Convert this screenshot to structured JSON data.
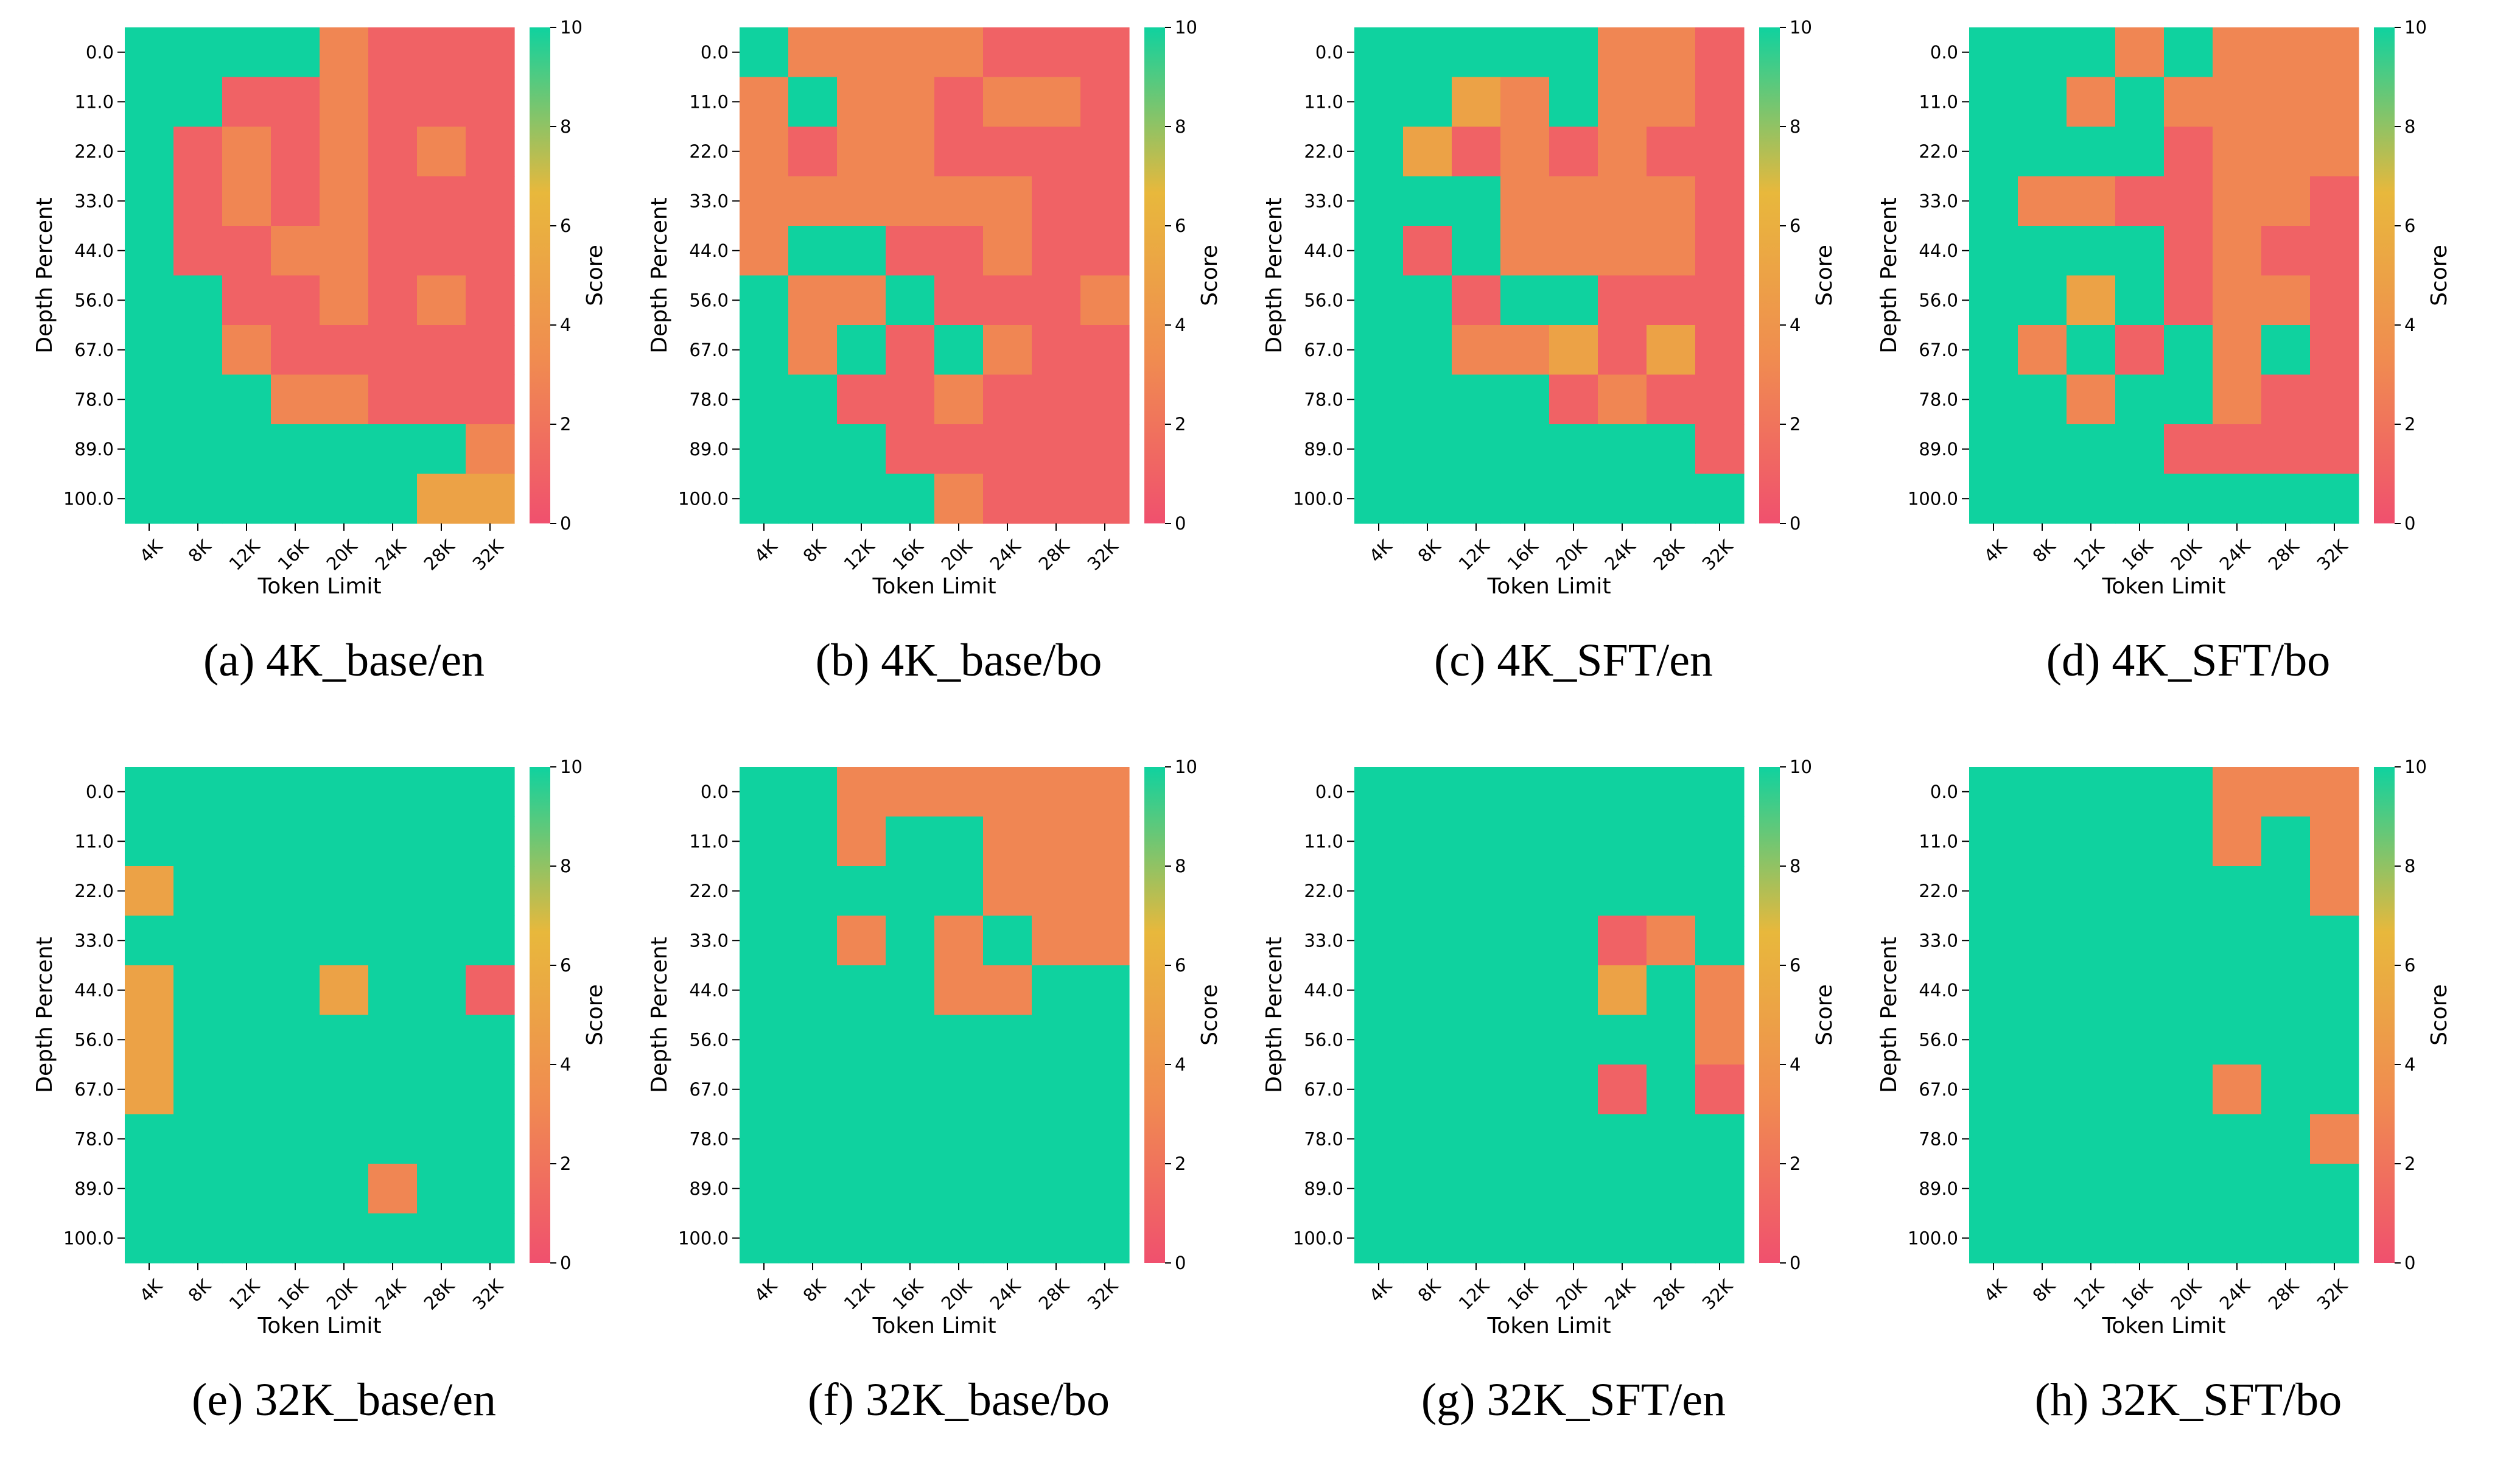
{
  "chart_data": [
    {
      "type": "heatmap",
      "caption": "(a) 4K_base/en",
      "xlabel": "Token Limit",
      "ylabel": "Depth Percent",
      "x": [
        "4K",
        "8K",
        "12K",
        "16K",
        "20K",
        "24K",
        "28K",
        "32K"
      ],
      "y": [
        "0.0",
        "11.0",
        "22.0",
        "33.0",
        "44.0",
        "56.0",
        "67.0",
        "78.0",
        "89.0",
        "100.0"
      ],
      "values": [
        [
          10,
          10,
          10,
          10,
          3,
          1,
          1,
          1
        ],
        [
          10,
          10,
          1,
          1,
          3,
          1,
          1,
          1
        ],
        [
          10,
          1,
          3,
          1,
          3,
          1,
          3,
          1
        ],
        [
          10,
          1,
          3,
          1,
          3,
          1,
          1,
          1
        ],
        [
          10,
          1,
          1,
          3,
          3,
          1,
          1,
          1
        ],
        [
          10,
          10,
          1,
          1,
          3,
          1,
          3,
          1
        ],
        [
          10,
          10,
          3,
          1,
          1,
          1,
          1,
          1
        ],
        [
          10,
          10,
          10,
          3,
          3,
          1,
          1,
          1
        ],
        [
          10,
          10,
          10,
          10,
          10,
          10,
          10,
          3
        ],
        [
          10,
          10,
          10,
          10,
          10,
          10,
          5,
          5
        ]
      ],
      "colorbar": {
        "label": "Score",
        "ticks": [
          "0",
          "2",
          "4",
          "6",
          "8",
          "10"
        ],
        "range": [
          0,
          10
        ]
      }
    },
    {
      "type": "heatmap",
      "caption": "(b) 4K_base/bo",
      "xlabel": "Token Limit",
      "ylabel": "Depth Percent",
      "x": [
        "4K",
        "8K",
        "12K",
        "16K",
        "20K",
        "24K",
        "28K",
        "32K"
      ],
      "y": [
        "0.0",
        "11.0",
        "22.0",
        "33.0",
        "44.0",
        "56.0",
        "67.0",
        "78.0",
        "89.0",
        "100.0"
      ],
      "values": [
        [
          10,
          3,
          3,
          3,
          3,
          1,
          1,
          1
        ],
        [
          3,
          10,
          3,
          3,
          1,
          3,
          3,
          1
        ],
        [
          3,
          1,
          3,
          3,
          1,
          1,
          1,
          1
        ],
        [
          3,
          3,
          3,
          3,
          3,
          3,
          1,
          1
        ],
        [
          3,
          10,
          10,
          1,
          1,
          3,
          1,
          1
        ],
        [
          10,
          3,
          3,
          10,
          1,
          1,
          1,
          3
        ],
        [
          10,
          3,
          10,
          1,
          10,
          3,
          1,
          1
        ],
        [
          10,
          10,
          1,
          1,
          3,
          1,
          1,
          1
        ],
        [
          10,
          10,
          10,
          1,
          1,
          1,
          1,
          1
        ],
        [
          10,
          10,
          10,
          10,
          3,
          1,
          1,
          1
        ]
      ],
      "colorbar": {
        "label": "Score",
        "ticks": [
          "0",
          "2",
          "4",
          "6",
          "8",
          "10"
        ],
        "range": [
          0,
          10
        ]
      }
    },
    {
      "type": "heatmap",
      "caption": "(c) 4K_SFT/en",
      "xlabel": "Token Limit",
      "ylabel": "Depth Percent",
      "x": [
        "4K",
        "8K",
        "12K",
        "16K",
        "20K",
        "24K",
        "28K",
        "32K"
      ],
      "y": [
        "0.0",
        "11.0",
        "22.0",
        "33.0",
        "44.0",
        "56.0",
        "67.0",
        "78.0",
        "89.0",
        "100.0"
      ],
      "values": [
        [
          10,
          10,
          10,
          10,
          10,
          3,
          3,
          1
        ],
        [
          10,
          10,
          5,
          3,
          10,
          3,
          3,
          1
        ],
        [
          10,
          5,
          1,
          3,
          1,
          3,
          1,
          1
        ],
        [
          10,
          10,
          10,
          3,
          3,
          3,
          3,
          1
        ],
        [
          10,
          1,
          10,
          3,
          3,
          3,
          3,
          1
        ],
        [
          10,
          10,
          1,
          10,
          10,
          1,
          1,
          1
        ],
        [
          10,
          10,
          3,
          3,
          5,
          1,
          5,
          1
        ],
        [
          10,
          10,
          10,
          10,
          1,
          3,
          1,
          1
        ],
        [
          10,
          10,
          10,
          10,
          10,
          10,
          10,
          1
        ],
        [
          10,
          10,
          10,
          10,
          10,
          10,
          10,
          10
        ]
      ],
      "colorbar": {
        "label": "Score",
        "ticks": [
          "0",
          "2",
          "4",
          "6",
          "8",
          "10"
        ],
        "range": [
          0,
          10
        ]
      }
    },
    {
      "type": "heatmap",
      "caption": "(d) 4K_SFT/bo",
      "xlabel": "Token Limit",
      "ylabel": "Depth Percent",
      "x": [
        "4K",
        "8K",
        "12K",
        "16K",
        "20K",
        "24K",
        "28K",
        "32K"
      ],
      "y": [
        "0.0",
        "11.0",
        "22.0",
        "33.0",
        "44.0",
        "56.0",
        "67.0",
        "78.0",
        "89.0",
        "100.0"
      ],
      "values": [
        [
          10,
          10,
          10,
          3,
          10,
          3,
          3,
          3
        ],
        [
          10,
          10,
          3,
          10,
          3,
          3,
          3,
          3
        ],
        [
          10,
          10,
          10,
          10,
          1,
          3,
          3,
          3
        ],
        [
          10,
          3,
          3,
          1,
          1,
          3,
          3,
          1
        ],
        [
          10,
          10,
          10,
          10,
          1,
          3,
          1,
          1
        ],
        [
          10,
          10,
          5,
          10,
          1,
          3,
          3,
          1
        ],
        [
          10,
          3,
          10,
          1,
          10,
          3,
          10,
          1
        ],
        [
          10,
          10,
          3,
          10,
          10,
          3,
          1,
          1
        ],
        [
          10,
          10,
          10,
          10,
          1,
          1,
          1,
          1
        ],
        [
          10,
          10,
          10,
          10,
          10,
          10,
          10,
          10
        ]
      ],
      "colorbar": {
        "label": "Score",
        "ticks": [
          "0",
          "2",
          "4",
          "6",
          "8",
          "10"
        ],
        "range": [
          0,
          10
        ]
      }
    },
    {
      "type": "heatmap",
      "caption": "(e) 32K_base/en",
      "xlabel": "Token Limit",
      "ylabel": "Depth Percent",
      "x": [
        "4K",
        "8K",
        "12K",
        "16K",
        "20K",
        "24K",
        "28K",
        "32K"
      ],
      "y": [
        "0.0",
        "11.0",
        "22.0",
        "33.0",
        "44.0",
        "56.0",
        "67.0",
        "78.0",
        "89.0",
        "100.0"
      ],
      "values": [
        [
          10,
          10,
          10,
          10,
          10,
          10,
          10,
          10
        ],
        [
          10,
          10,
          10,
          10,
          10,
          10,
          10,
          10
        ],
        [
          5,
          10,
          10,
          10,
          10,
          10,
          10,
          10
        ],
        [
          10,
          10,
          10,
          10,
          10,
          10,
          10,
          10
        ],
        [
          5,
          10,
          10,
          10,
          5,
          10,
          10,
          1
        ],
        [
          5,
          10,
          10,
          10,
          10,
          10,
          10,
          10
        ],
        [
          5,
          10,
          10,
          10,
          10,
          10,
          10,
          10
        ],
        [
          10,
          10,
          10,
          10,
          10,
          10,
          10,
          10
        ],
        [
          10,
          10,
          10,
          10,
          10,
          3,
          10,
          10
        ],
        [
          10,
          10,
          10,
          10,
          10,
          10,
          10,
          10
        ]
      ],
      "colorbar": {
        "label": "Score",
        "ticks": [
          "0",
          "2",
          "4",
          "6",
          "8",
          "10"
        ],
        "range": [
          0,
          10
        ]
      }
    },
    {
      "type": "heatmap",
      "caption": "(f) 32K_base/bo",
      "xlabel": "Token Limit",
      "ylabel": "Depth Percent",
      "x": [
        "4K",
        "8K",
        "12K",
        "16K",
        "20K",
        "24K",
        "28K",
        "32K"
      ],
      "y": [
        "0.0",
        "11.0",
        "22.0",
        "33.0",
        "44.0",
        "56.0",
        "67.0",
        "78.0",
        "89.0",
        "100.0"
      ],
      "values": [
        [
          10,
          10,
          3,
          3,
          3,
          3,
          3,
          3
        ],
        [
          10,
          10,
          3,
          10,
          10,
          3,
          3,
          3
        ],
        [
          10,
          10,
          10,
          10,
          10,
          3,
          3,
          3
        ],
        [
          10,
          10,
          3,
          10,
          3,
          10,
          3,
          3
        ],
        [
          10,
          10,
          10,
          10,
          3,
          3,
          10,
          10
        ],
        [
          10,
          10,
          10,
          10,
          10,
          10,
          10,
          10
        ],
        [
          10,
          10,
          10,
          10,
          10,
          10,
          10,
          10
        ],
        [
          10,
          10,
          10,
          10,
          10,
          10,
          10,
          10
        ],
        [
          10,
          10,
          10,
          10,
          10,
          10,
          10,
          10
        ],
        [
          10,
          10,
          10,
          10,
          10,
          10,
          10,
          10
        ]
      ],
      "colorbar": {
        "label": "Score",
        "ticks": [
          "0",
          "2",
          "4",
          "6",
          "8",
          "10"
        ],
        "range": [
          0,
          10
        ]
      }
    },
    {
      "type": "heatmap",
      "caption": "(g) 32K_SFT/en",
      "xlabel": "Token Limit",
      "ylabel": "Depth Percent",
      "x": [
        "4K",
        "8K",
        "12K",
        "16K",
        "20K",
        "24K",
        "28K",
        "32K"
      ],
      "y": [
        "0.0",
        "11.0",
        "22.0",
        "33.0",
        "44.0",
        "56.0",
        "67.0",
        "78.0",
        "89.0",
        "100.0"
      ],
      "values": [
        [
          10,
          10,
          10,
          10,
          10,
          10,
          10,
          10
        ],
        [
          10,
          10,
          10,
          10,
          10,
          10,
          10,
          10
        ],
        [
          10,
          10,
          10,
          10,
          10,
          10,
          10,
          10
        ],
        [
          10,
          10,
          10,
          10,
          10,
          1,
          3,
          10
        ],
        [
          10,
          10,
          10,
          10,
          10,
          5,
          10,
          3
        ],
        [
          10,
          10,
          10,
          10,
          10,
          10,
          10,
          3
        ],
        [
          10,
          10,
          10,
          10,
          10,
          1,
          10,
          1
        ],
        [
          10,
          10,
          10,
          10,
          10,
          10,
          10,
          10
        ],
        [
          10,
          10,
          10,
          10,
          10,
          10,
          10,
          10
        ],
        [
          10,
          10,
          10,
          10,
          10,
          10,
          10,
          10
        ]
      ],
      "colorbar": {
        "label": "Score",
        "ticks": [
          "0",
          "2",
          "4",
          "6",
          "8",
          "10"
        ],
        "range": [
          0,
          10
        ]
      }
    },
    {
      "type": "heatmap",
      "caption": "(h) 32K_SFT/bo",
      "xlabel": "Token Limit",
      "ylabel": "Depth Percent",
      "x": [
        "4K",
        "8K",
        "12K",
        "16K",
        "20K",
        "24K",
        "28K",
        "32K"
      ],
      "y": [
        "0.0",
        "11.0",
        "22.0",
        "33.0",
        "44.0",
        "56.0",
        "67.0",
        "78.0",
        "89.0",
        "100.0"
      ],
      "values": [
        [
          10,
          10,
          10,
          10,
          10,
          3,
          3,
          3
        ],
        [
          10,
          10,
          10,
          10,
          10,
          3,
          10,
          3
        ],
        [
          10,
          10,
          10,
          10,
          10,
          10,
          10,
          3
        ],
        [
          10,
          10,
          10,
          10,
          10,
          10,
          10,
          10
        ],
        [
          10,
          10,
          10,
          10,
          10,
          10,
          10,
          10
        ],
        [
          10,
          10,
          10,
          10,
          10,
          10,
          10,
          10
        ],
        [
          10,
          10,
          10,
          10,
          10,
          3,
          10,
          10
        ],
        [
          10,
          10,
          10,
          10,
          10,
          10,
          10,
          3
        ],
        [
          10,
          10,
          10,
          10,
          10,
          10,
          10,
          10
        ],
        [
          10,
          10,
          10,
          10,
          10,
          10,
          10,
          10
        ]
      ],
      "colorbar": {
        "label": "Score",
        "ticks": [
          "0",
          "2",
          "4",
          "6",
          "8",
          "10"
        ],
        "range": [
          0,
          10
        ]
      }
    }
  ],
  "colors": {
    "stops": [
      "#f0506e",
      "#f08c50",
      "#e8b83c",
      "#0fd29f"
    ],
    "text": "#000000"
  }
}
